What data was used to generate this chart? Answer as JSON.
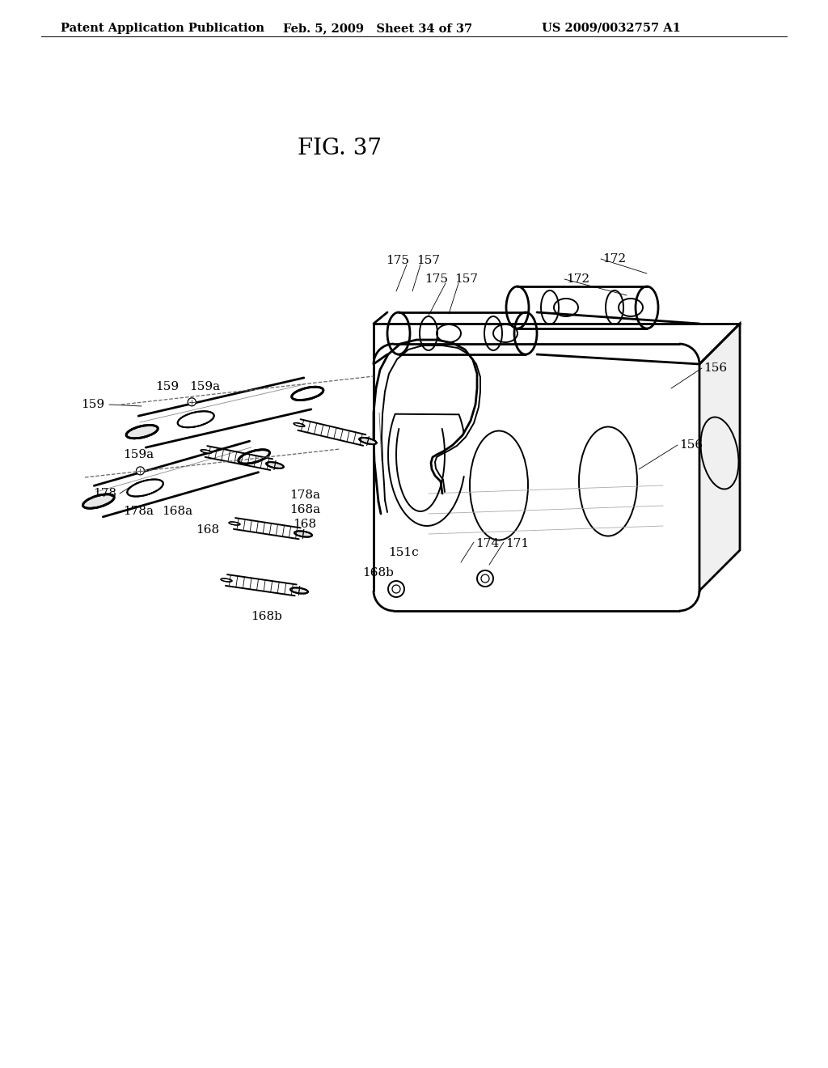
{
  "bg_color": "#ffffff",
  "line_color": "#000000",
  "header_left": "Patent Application Publication",
  "header_center": "Feb. 5, 2009   Sheet 34 of 37",
  "header_right": "US 2009/0032757 A1",
  "title": "FIG. 37",
  "header_fontsize": 10.5,
  "title_fontsize": 20,
  "label_fontsize": 11.0
}
